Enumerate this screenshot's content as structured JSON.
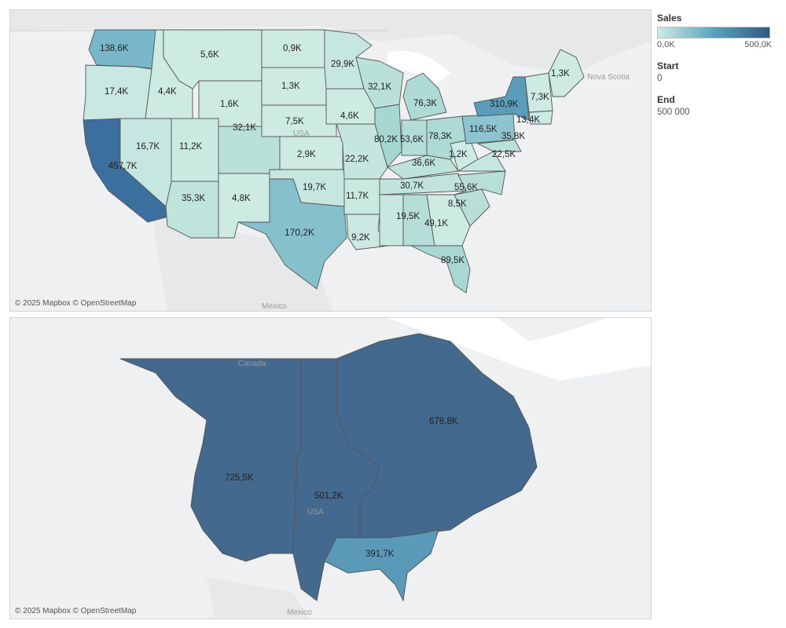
{
  "legend": {
    "title": "Sales",
    "min_label": "0,0K",
    "max_label": "500,0K",
    "color_low": "#cdebe5",
    "color_high": "#2f5a86"
  },
  "params": {
    "start_label": "Start",
    "start_value": "0",
    "end_label": "End",
    "end_value": "500 000"
  },
  "top_map": {
    "credit": "© 2025 Mapbox © OpenStreetMap",
    "places": {
      "usa": "USA",
      "mexico": "Mexico",
      "nova_scotia": "Nova Scotia"
    },
    "states": [
      {
        "name": "washington",
        "label": "138,6K"
      },
      {
        "name": "oregon",
        "label": "17,4K"
      },
      {
        "name": "california",
        "label": "457,7K"
      },
      {
        "name": "nevada",
        "label": "16,7K"
      },
      {
        "name": "idaho",
        "label": "4,4K"
      },
      {
        "name": "montana",
        "label": "5,6K"
      },
      {
        "name": "wyoming",
        "label": "1,6K"
      },
      {
        "name": "utah",
        "label": "11,2K"
      },
      {
        "name": "arizona",
        "label": "35,3K"
      },
      {
        "name": "colorado",
        "label": "32,1K"
      },
      {
        "name": "new-mexico",
        "label": "4,8K"
      },
      {
        "name": "north-dakota",
        "label": "0,9K"
      },
      {
        "name": "south-dakota",
        "label": "1,3K"
      },
      {
        "name": "nebraska",
        "label": "7,5K"
      },
      {
        "name": "kansas",
        "label": "2,9K"
      },
      {
        "name": "oklahoma",
        "label": "19,7K"
      },
      {
        "name": "texas",
        "label": "170,2K"
      },
      {
        "name": "minnesota",
        "label": "29,9K"
      },
      {
        "name": "iowa",
        "label": "4,6K"
      },
      {
        "name": "missouri",
        "label": "22,2K"
      },
      {
        "name": "arkansas",
        "label": "11,7K"
      },
      {
        "name": "louisiana",
        "label": "9,2K"
      },
      {
        "name": "wisconsin",
        "label": "32,1K"
      },
      {
        "name": "illinois",
        "label": "80,2K"
      },
      {
        "name": "michigan",
        "label": "76,3K"
      },
      {
        "name": "indiana",
        "label": "53,6K"
      },
      {
        "name": "ohio",
        "label": "78,3K"
      },
      {
        "name": "kentucky",
        "label": "36,6K"
      },
      {
        "name": "tennessee",
        "label": "30,7K"
      },
      {
        "name": "mississippi",
        "label": "19,5K"
      },
      {
        "name": "alabama",
        "label": "49,1K"
      },
      {
        "name": "georgia",
        "label": "8,5K"
      },
      {
        "name": "florida",
        "label": "89,5K"
      },
      {
        "name": "south-carolina",
        "label": "55,6K"
      },
      {
        "name": "west-virginia",
        "label": "1,2K"
      },
      {
        "name": "virginia",
        "label": "22,5K"
      },
      {
        "name": "pennsylvania",
        "label": "116,5K"
      },
      {
        "name": "new-york",
        "label": "310,9K"
      },
      {
        "name": "maryland",
        "label": "35,8K"
      },
      {
        "name": "massachusetts",
        "label": "13,4K"
      },
      {
        "name": "vermont",
        "label": "7,3K"
      },
      {
        "name": "maine",
        "label": "1,3K"
      }
    ]
  },
  "bottom_map": {
    "credit": "© 2025 Mapbox © OpenStreetMap",
    "places": {
      "canada": "Canada",
      "usa": "USA",
      "mexico": "Mexico"
    },
    "regions": [
      {
        "name": "west",
        "label": "725,5K"
      },
      {
        "name": "central",
        "label": "501,2K"
      },
      {
        "name": "east",
        "label": "678,8K"
      },
      {
        "name": "south",
        "label": "391,7K"
      }
    ]
  }
}
